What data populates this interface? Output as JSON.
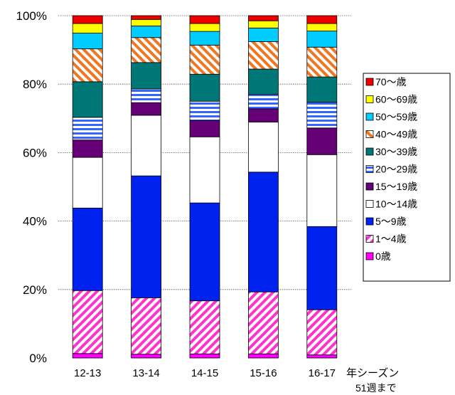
{
  "chart_data": {
    "type": "bar",
    "stacked": true,
    "percent": true,
    "categories": [
      "12-13",
      "13-14",
      "14-15",
      "15-16",
      "16-17"
    ],
    "x_suffix": "年シーズン",
    "note": "51週まで",
    "ylim": [
      0,
      100
    ],
    "y_ticks": [
      "0%",
      "20%",
      "40%",
      "60%",
      "80%",
      "100%"
    ],
    "grid": "horizontal dotted",
    "legend_position": "right",
    "series": [
      {
        "name": "0歳",
        "values": [
          1.3,
          1.1,
          1.2,
          1.2,
          0.9
        ],
        "color": "#ff00ff",
        "pattern": "solid"
      },
      {
        "name": "1～4歳",
        "values": [
          18.4,
          16.5,
          15.5,
          18.1,
          13.2
        ],
        "color": "#ff33cc",
        "pattern": "diag"
      },
      {
        "name": "5～9歳",
        "values": [
          24.1,
          35.6,
          28.6,
          35.0,
          24.3
        ],
        "color": "#0022ee",
        "pattern": "solid"
      },
      {
        "name": "10～14歳",
        "values": [
          14.8,
          17.7,
          19.3,
          14.6,
          21.0
        ],
        "color": "#ffffff",
        "pattern": "solid"
      },
      {
        "name": "15～19歳",
        "values": [
          5.1,
          3.7,
          4.8,
          3.9,
          7.8
        ],
        "color": "#660077",
        "pattern": "solid"
      },
      {
        "name": "20～29歳",
        "values": [
          6.6,
          4.0,
          5.6,
          4.2,
          7.5
        ],
        "color": "#3366ff",
        "pattern": "hstripe"
      },
      {
        "name": "30～39歳",
        "values": [
          10.4,
          7.7,
          7.9,
          7.4,
          7.4
        ],
        "color": "#007777",
        "pattern": "solid"
      },
      {
        "name": "40～49歳",
        "values": [
          9.6,
          7.3,
          8.5,
          8.0,
          8.7
        ],
        "color": "#ee7722",
        "pattern": "diag2"
      },
      {
        "name": "50～59歳",
        "values": [
          4.6,
          3.4,
          4.0,
          4.0,
          4.7
        ],
        "color": "#00ccff",
        "pattern": "solid"
      },
      {
        "name": "60～69歳",
        "values": [
          2.8,
          1.9,
          2.3,
          2.1,
          2.2
        ],
        "color": "#ffff00",
        "pattern": "solid"
      },
      {
        "name": "70～歳",
        "values": [
          2.3,
          1.1,
          2.3,
          1.5,
          2.3
        ],
        "color": "#ee0000",
        "pattern": "solid"
      }
    ]
  }
}
